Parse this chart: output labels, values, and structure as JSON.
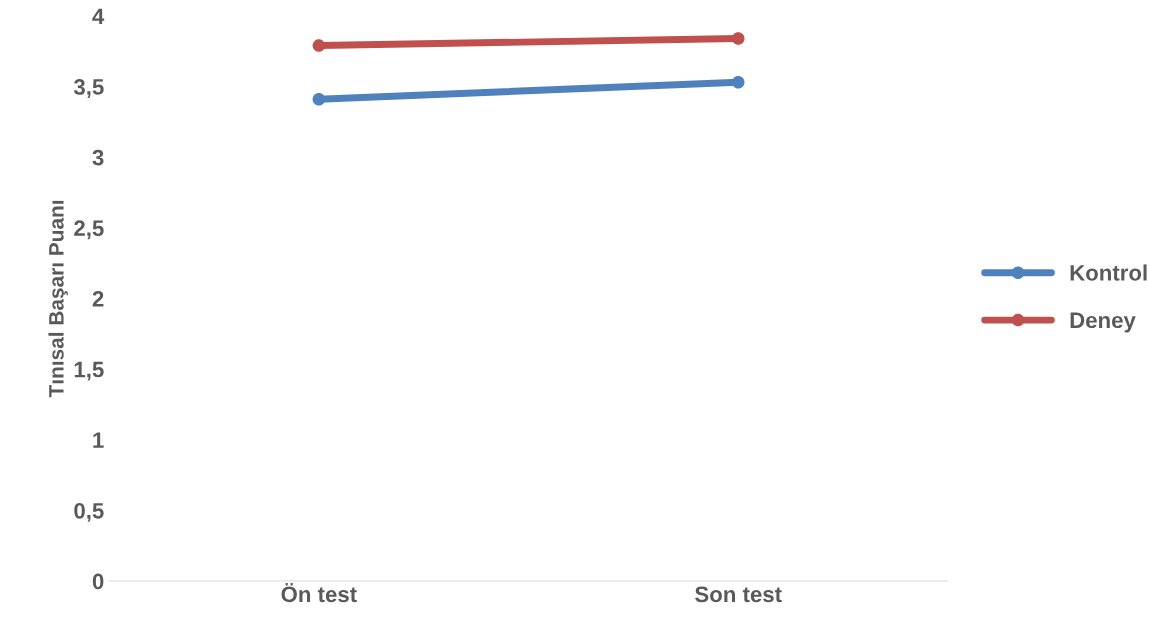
{
  "chart_data": {
    "type": "line",
    "ylabel": "Tınısal Başarı Puanı",
    "categories": [
      "Ön test",
      "Son test"
    ],
    "series": [
      {
        "name": "Kontrol",
        "color": "#4f81bd",
        "values": [
          3.41,
          3.53
        ]
      },
      {
        "name": "Deney",
        "color": "#c0504d",
        "values": [
          3.79,
          3.84
        ]
      }
    ],
    "ylim": [
      0,
      4
    ],
    "yticks": [
      0,
      {
        "value": 0.5,
        "label": "0,5"
      },
      1,
      {
        "value": 1.5,
        "label": "1,5"
      },
      2,
      {
        "value": 2.5,
        "label": "2,5"
      },
      3,
      {
        "value": 3.5,
        "label": "3,5"
      },
      4
    ],
    "grid": false,
    "legend": "right",
    "marker": "circle",
    "line_style": "solid"
  }
}
